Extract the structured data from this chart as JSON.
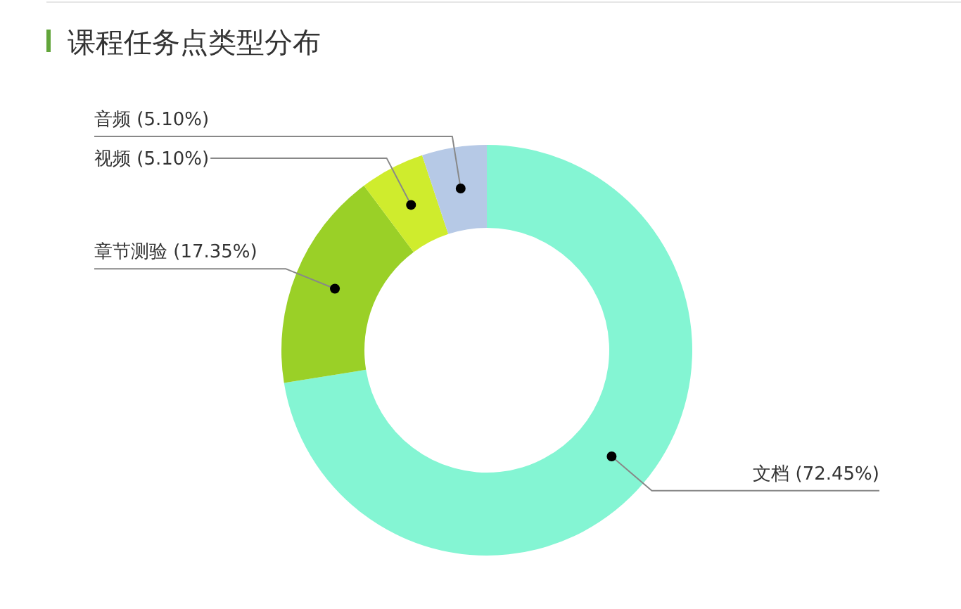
{
  "chart_data": {
    "type": "donut",
    "title": "课程任务点类型分布",
    "categories": [
      "文档",
      "章节测验",
      "视频",
      "音频"
    ],
    "values": [
      72.45,
      17.35,
      5.1,
      5.1
    ],
    "colors": [
      "#84f5d3",
      "#9ad027",
      "#cfec2d",
      "#b6c9e6"
    ],
    "value_labels": [
      "(72.45%)",
      "(17.35%)",
      "(5.10%)",
      "(5.10%)"
    ]
  }
}
